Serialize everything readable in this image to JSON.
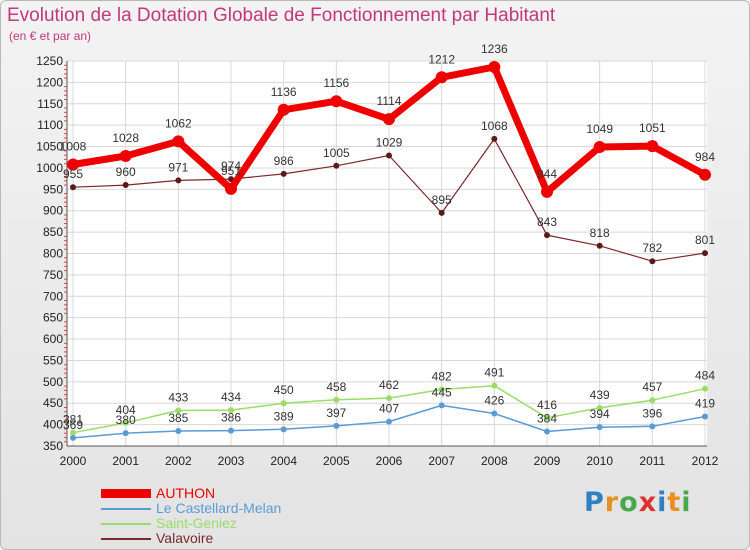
{
  "title": "Evolution de la Dotation Globale de Fonctionnement par Habitant",
  "subtitle": "(en € et par an)",
  "brand": {
    "text": "Proxiti",
    "letter_colors": [
      "#2f7fc1",
      "#e98f1f",
      "#4aa84a",
      "#e03131",
      "#2f7fc1",
      "#e98f1f",
      "#4aa84a"
    ]
  },
  "chart_data": {
    "type": "line",
    "title": "Evolution de la Dotation Globale de Fonctionnement par Habitant",
    "subtitle": "(en € et par an)",
    "x": [
      "2000",
      "2001",
      "2002",
      "2003",
      "2004",
      "2005",
      "2006",
      "2007",
      "2008",
      "2009",
      "2010",
      "2011",
      "2012"
    ],
    "ylim": [
      350,
      1250
    ],
    "yticks": [
      350,
      400,
      450,
      500,
      550,
      600,
      650,
      700,
      750,
      800,
      850,
      900,
      950,
      1000,
      1050,
      1100,
      1150,
      1200,
      1250
    ],
    "grid": true,
    "legend_position": "bottom-left",
    "series": [
      {
        "name": "AUTHON",
        "color": "#ee0000",
        "values": [
          1008,
          1028,
          1062,
          951,
          1136,
          1156,
          1114,
          1212,
          1236,
          944,
          1049,
          1051,
          984
        ],
        "labels": [
          "1008",
          "1028",
          "1062",
          "951",
          "1136",
          "1156",
          "1114",
          "1212",
          "1236",
          "944",
          "1049",
          "1051",
          "984"
        ]
      },
      {
        "name": "Le Castellard-Melan",
        "color": "#5b9bd5",
        "values": [
          369,
          380,
          385,
          386,
          389,
          397,
          407,
          445,
          426,
          384,
          394,
          396,
          419
        ],
        "labels": [
          "369",
          "380",
          "385",
          "386",
          "389",
          "397",
          "407",
          "445",
          "426",
          "384",
          "394",
          "396",
          "419"
        ]
      },
      {
        "name": "Saint-Geniez",
        "color": "#99dd66",
        "values": [
          381,
          404,
          433,
          434,
          450,
          458,
          462,
          482,
          491,
          416,
          439,
          457,
          484
        ],
        "labels": [
          "381",
          "404",
          "433",
          "434",
          "450",
          "458",
          "462",
          "482",
          "491",
          "416",
          "439",
          "457",
          "484"
        ]
      },
      {
        "name": "Valavoire",
        "color": "#7a2a2a",
        "values": [
          955,
          960,
          971,
          974,
          986,
          1005,
          1029,
          895,
          1068,
          843,
          818,
          782,
          801
        ],
        "labels": [
          "955",
          "960",
          "971",
          "974",
          "986",
          "1005",
          "1029",
          "895",
          "1068",
          "843",
          "818",
          "782",
          "801"
        ]
      }
    ]
  }
}
